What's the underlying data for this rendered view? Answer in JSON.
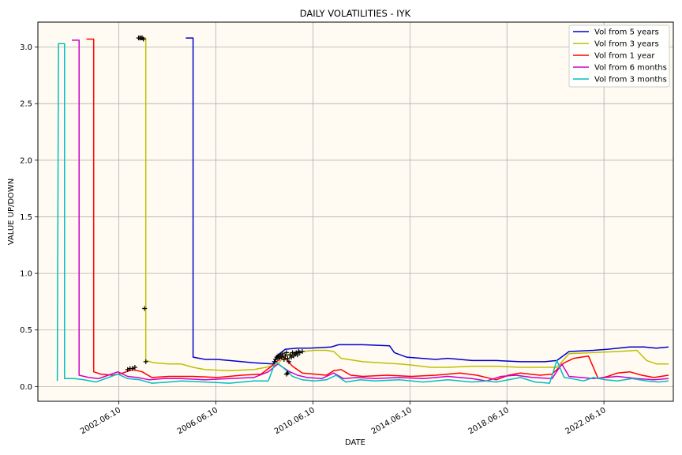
{
  "chart_data": {
    "type": "line",
    "title": "DAILY VOLATILITIES - IYK",
    "xlabel": "DATE",
    "ylabel": "VALUE UP/DOWN",
    "background": "#fffbf2",
    "grid": true,
    "legend_position": "top-right",
    "xlim": [
      1999.1,
      2025.3
    ],
    "ylim": [
      -0.13,
      3.22
    ],
    "x_ticks": [
      {
        "value": 2002.44,
        "label": "2002.06.10"
      },
      {
        "value": 2006.44,
        "label": "2006.06.10"
      },
      {
        "value": 2010.44,
        "label": "2010.06.10"
      },
      {
        "value": 2014.44,
        "label": "2014.06.10"
      },
      {
        "value": 2018.44,
        "label": "2018.06.10"
      },
      {
        "value": 2022.44,
        "label": "2022.06.10"
      }
    ],
    "y_ticks": [
      0.0,
      0.5,
      1.0,
      1.5,
      2.0,
      2.5,
      3.0
    ],
    "y_tick_labels": [
      "0.0",
      "0.5",
      "1.0",
      "1.5",
      "2.0",
      "2.5",
      "3.0"
    ],
    "series": [
      {
        "name": "Vol from 5 years",
        "color": "#0000cc",
        "x": [
          2005.2,
          2005.2,
          2005.5,
          2005.5,
          2006.0,
          2006.5,
          2007.0,
          2008.0,
          2008.8,
          2009.0,
          2009.3,
          2009.8,
          2010.3,
          2011.2,
          2011.5,
          2012.5,
          2013.6,
          2013.8,
          2014.3,
          2015.5,
          2016.0,
          2017.0,
          2018.0,
          2019.0,
          2020.0,
          2020.5,
          2021.0,
          2022.0,
          2022.6,
          2023.5,
          2024.1,
          2024.6,
          2025.1
        ],
        "y": [
          3.08,
          3.08,
          3.08,
          0.26,
          0.24,
          0.24,
          0.23,
          0.21,
          0.2,
          0.28,
          0.33,
          0.34,
          0.34,
          0.35,
          0.37,
          0.37,
          0.36,
          0.3,
          0.26,
          0.24,
          0.25,
          0.23,
          0.23,
          0.22,
          0.22,
          0.23,
          0.31,
          0.32,
          0.33,
          0.35,
          0.35,
          0.34,
          0.35
        ]
      },
      {
        "name": "Vol from 3 years",
        "color": "#bfbf00",
        "x": [
          2003.2,
          2003.2,
          2003.55,
          2003.55,
          2003.9,
          2004.5,
          2005.0,
          2005.5,
          2006.0,
          2007.0,
          2008.0,
          2008.5,
          2009.0,
          2009.3,
          2010.0,
          2010.5,
          2011.0,
          2011.3,
          2011.6,
          2012.5,
          2013.2,
          2014.0,
          2014.5,
          2015.3,
          2016.0,
          2017.0,
          2018.0,
          2019.0,
          2020.0,
          2020.5,
          2021.0,
          2022.0,
          2023.0,
          2023.8,
          2024.2,
          2024.6,
          2025.1
        ],
        "y": [
          3.08,
          3.08,
          3.08,
          0.23,
          0.21,
          0.2,
          0.2,
          0.17,
          0.15,
          0.14,
          0.15,
          0.17,
          0.2,
          0.28,
          0.31,
          0.32,
          0.32,
          0.31,
          0.25,
          0.22,
          0.21,
          0.2,
          0.19,
          0.17,
          0.17,
          0.18,
          0.18,
          0.17,
          0.17,
          0.17,
          0.29,
          0.3,
          0.31,
          0.32,
          0.23,
          0.2,
          0.2
        ]
      },
      {
        "name": "Vol from 1 year",
        "color": "#ff0000",
        "x": [
          2001.1,
          2001.1,
          2001.4,
          2001.4,
          2001.7,
          2002.2,
          2002.6,
          2003.0,
          2003.4,
          2003.8,
          2004.5,
          2005.5,
          2006.5,
          2007.5,
          2008.3,
          2008.8,
          2009.2,
          2009.6,
          2010.0,
          2010.5,
          2011.0,
          2011.3,
          2011.6,
          2012.0,
          2012.5,
          2013.5,
          2014.5,
          2015.5,
          2016.5,
          2017.2,
          2018.0,
          2018.5,
          2019.0,
          2019.8,
          2020.3,
          2020.8,
          2021.2,
          2021.8,
          2022.2,
          2022.6,
          2023.0,
          2023.5,
          2024.0,
          2024.5,
          2025.1
        ],
        "y": [
          3.07,
          3.07,
          3.07,
          0.13,
          0.11,
          0.1,
          0.12,
          0.15,
          0.13,
          0.08,
          0.09,
          0.09,
          0.08,
          0.1,
          0.11,
          0.19,
          0.27,
          0.18,
          0.12,
          0.11,
          0.1,
          0.14,
          0.15,
          0.1,
          0.09,
          0.1,
          0.09,
          0.1,
          0.12,
          0.1,
          0.06,
          0.1,
          0.12,
          0.1,
          0.11,
          0.21,
          0.25,
          0.27,
          0.07,
          0.09,
          0.12,
          0.13,
          0.1,
          0.08,
          0.1
        ]
      },
      {
        "name": "Vol from 6 months",
        "color": "#cc00cc",
        "x": [
          2000.5,
          2000.5,
          2000.8,
          2000.8,
          2001.2,
          2001.6,
          2002.0,
          2002.4,
          2002.8,
          2003.2,
          2003.7,
          2004.3,
          2005.0,
          2006.0,
          2007.0,
          2008.0,
          2008.6,
          2009.0,
          2009.4,
          2009.8,
          2010.2,
          2010.8,
          2011.3,
          2011.7,
          2012.3,
          2013.0,
          2014.0,
          2015.0,
          2016.0,
          2017.0,
          2017.6,
          2018.2,
          2018.8,
          2019.5,
          2020.3,
          2020.7,
          2021.0,
          2021.5,
          2022.0,
          2022.5,
          2023.0,
          2023.8,
          2024.5,
          2025.1
        ],
        "y": [
          3.06,
          3.06,
          3.06,
          0.1,
          0.08,
          0.07,
          0.1,
          0.13,
          0.09,
          0.08,
          0.06,
          0.07,
          0.07,
          0.06,
          0.07,
          0.08,
          0.13,
          0.2,
          0.14,
          0.1,
          0.08,
          0.07,
          0.12,
          0.07,
          0.08,
          0.07,
          0.08,
          0.07,
          0.09,
          0.07,
          0.05,
          0.09,
          0.1,
          0.08,
          0.07,
          0.2,
          0.09,
          0.08,
          0.07,
          0.08,
          0.09,
          0.07,
          0.06,
          0.07
        ]
      },
      {
        "name": "Vol from 3 months",
        "color": "#00bfbf",
        "x": [
          1999.9,
          1999.95,
          2000.2,
          2000.2,
          2000.6,
          2001.0,
          2001.5,
          2002.0,
          2002.4,
          2002.8,
          2003.3,
          2003.8,
          2004.5,
          2005.0,
          2006.0,
          2007.0,
          2008.0,
          2008.6,
          2008.9,
          2009.2,
          2009.6,
          2010.0,
          2010.5,
          2011.0,
          2011.4,
          2011.8,
          2012.4,
          2013.0,
          2014.0,
          2015.0,
          2016.0,
          2017.0,
          2017.6,
          2018.0,
          2018.5,
          2019.0,
          2019.6,
          2020.2,
          2020.5,
          2020.8,
          2021.1,
          2021.6,
          2022.0,
          2022.5,
          2023.0,
          2023.6,
          2024.2,
          2024.7,
          2025.1
        ],
        "y": [
          0.05,
          3.03,
          3.03,
          0.07,
          0.07,
          0.06,
          0.04,
          0.08,
          0.11,
          0.07,
          0.06,
          0.03,
          0.04,
          0.05,
          0.04,
          0.03,
          0.05,
          0.05,
          0.22,
          0.17,
          0.09,
          0.06,
          0.05,
          0.06,
          0.1,
          0.04,
          0.06,
          0.05,
          0.06,
          0.04,
          0.06,
          0.04,
          0.05,
          0.04,
          0.06,
          0.08,
          0.04,
          0.03,
          0.23,
          0.08,
          0.07,
          0.05,
          0.08,
          0.06,
          0.05,
          0.07,
          0.05,
          0.04,
          0.05
        ]
      }
    ],
    "marker_series": {
      "color": "#000000",
      "x": [
        2003.25,
        2003.3,
        2003.35,
        2003.4,
        2003.45,
        2003.5,
        2003.55,
        2002.8,
        2002.9,
        2003.0,
        2003.1,
        2008.85,
        2008.9,
        2008.95,
        2009.0,
        2009.05,
        2009.1,
        2009.15,
        2009.2,
        2009.25,
        2009.3,
        2009.35,
        2009.4,
        2009.45,
        2009.5,
        2009.55,
        2009.6,
        2009.65,
        2009.7,
        2009.75,
        2009.8,
        2009.85,
        2009.9,
        2010.0,
        2009.35,
        2009.4
      ],
      "y": [
        3.08,
        3.08,
        3.08,
        3.08,
        3.07,
        0.69,
        0.22,
        0.15,
        0.16,
        0.16,
        0.17,
        0.22,
        0.24,
        0.26,
        0.27,
        0.25,
        0.28,
        0.26,
        0.29,
        0.24,
        0.27,
        0.3,
        0.25,
        0.22,
        0.28,
        0.26,
        0.3,
        0.27,
        0.29,
        0.3,
        0.28,
        0.31,
        0.3,
        0.31,
        0.11,
        0.12
      ]
    }
  }
}
